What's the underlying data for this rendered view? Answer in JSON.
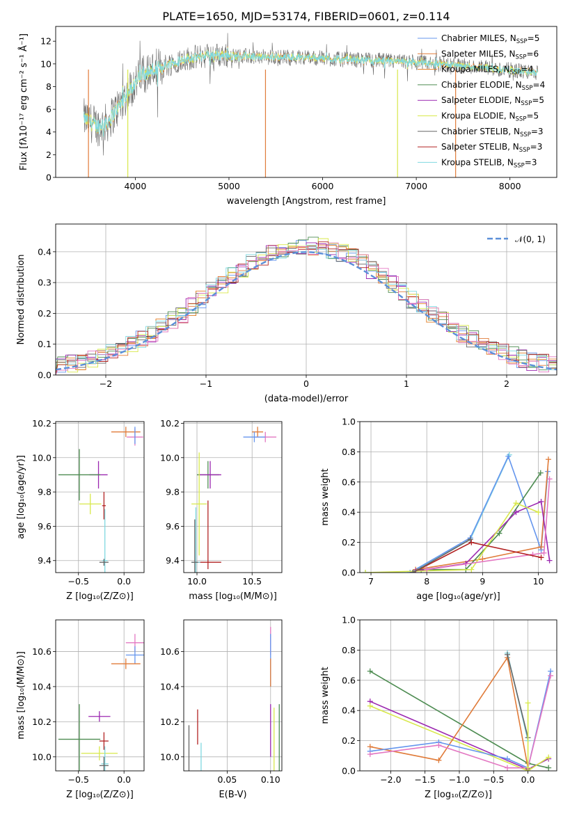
{
  "figure_title": "PLATE=1650, MJD=53174, FIBERID=0601, z=0.114",
  "colors": {
    "Chabrier MILES": "#6495ed",
    "Salpeter MILES": "#e07b39",
    "Kroupa MILES": "#e07b20",
    "Chabrier ELODIE": "#4c8b50",
    "Salpeter ELODIE": "#9b27b0",
    "Kroupa ELODIE": "#d8e84a",
    "Chabrier STELIB": "#666666",
    "Salpeter STELIB": "#b22222",
    "Kroupa STELIB": "#7fd8e0",
    "gaussian": "#5b8fd8",
    "grid": "#b0b0b0",
    "pink": "#e377c2"
  },
  "chart_data": [
    {
      "id": "spectrum",
      "type": "line",
      "title": "PLATE=1650, MJD=53174, FIBERID=0601, z=0.114",
      "xlabel": "wavelength [Angstrom, rest frame]",
      "ylabel": "Flux [fλ10⁻¹⁷ erg cm⁻² s⁻¹ Å⁻¹]",
      "xlim": [
        3150,
        8500
      ],
      "ylim": [
        0,
        13.3
      ],
      "xticks": [
        "4000",
        "5000",
        "6000",
        "7000",
        "8000"
      ],
      "yticks": [
        "0",
        "2",
        "4",
        "6",
        "8",
        "10",
        "12"
      ],
      "grid": false,
      "legend_position": "top-right",
      "legend": [
        {
          "label": "Chabrier MILES, N",
          "sub": "SSP",
          "suffix": "=5",
          "color": "#6495ed"
        },
        {
          "label": "Salpeter MILES, N",
          "sub": "SSP",
          "suffix": "=6",
          "color": "#e07b39"
        },
        {
          "label": "Kroupa MILES, N",
          "sub": "SSP",
          "suffix": "=4",
          "color": "#e07b20"
        },
        {
          "label": "Chabrier ELODIE, N",
          "sub": "SSP",
          "suffix": "=4",
          "color": "#4c8b50"
        },
        {
          "label": "Salpeter ELODIE, N",
          "sub": "SSP",
          "suffix": "=5",
          "color": "#9b27b0"
        },
        {
          "label": "Kroupa ELODIE, N",
          "sub": "SSP",
          "suffix": "=5",
          "color": "#d8e84a"
        },
        {
          "label": "Chabrier STELIB, N",
          "sub": "SSP",
          "suffix": "=3",
          "color": "#666666"
        },
        {
          "label": "Salpeter STELIB, N",
          "sub": "SSP",
          "suffix": "=3",
          "color": "#b22222"
        },
        {
          "label": "Kroupa STELIB, N",
          "sub": "SSP",
          "suffix": "=3",
          "color": "#7fd8e0"
        }
      ],
      "continuum": {
        "x": [
          3450,
          3600,
          3700,
          3800,
          3900,
          4000,
          4100,
          4300,
          4500,
          4800,
          5100,
          5400,
          5800,
          6200,
          6600,
          7000,
          7400,
          7800,
          8200,
          8300
        ],
        "y": [
          5.2,
          4.5,
          4.8,
          6.0,
          7.2,
          8.4,
          9.2,
          9.8,
          10.4,
          10.8,
          10.7,
          10.6,
          10.6,
          10.4,
          10.3,
          10.1,
          9.9,
          9.6,
          9.3,
          9.2
        ]
      },
      "dropouts": [
        {
          "x": 3500,
          "color": "#e07b39"
        },
        {
          "x": 3920,
          "color": "#d8e84a"
        },
        {
          "x": 5390,
          "color": "#e07b39"
        },
        {
          "x": 6800,
          "color": "#d8e84a"
        },
        {
          "x": 7420,
          "color": "#e07b39"
        }
      ]
    },
    {
      "id": "residuals",
      "type": "area",
      "xlabel": "(data-model)/error",
      "ylabel": "Normed distribution",
      "xlim": [
        -2.5,
        2.5
      ],
      "ylim": [
        0,
        0.49
      ],
      "xticks": [
        "−2",
        "−1",
        "0",
        "1",
        "2"
      ],
      "yticks": [
        "0.0",
        "0.1",
        "0.2",
        "0.3",
        "0.4"
      ],
      "grid": true,
      "legend_position": "top-right",
      "gaussian_label": "𝒩(0, 1)",
      "bin_width": 0.1,
      "hist_base": [
        0.025,
        0.03,
        0.04,
        0.05,
        0.06,
        0.075,
        0.09,
        0.11,
        0.13,
        0.155,
        0.18,
        0.21,
        0.24,
        0.27,
        0.3,
        0.33,
        0.355,
        0.375,
        0.39,
        0.4,
        0.405,
        0.4,
        0.39,
        0.375,
        0.355,
        0.33,
        0.3,
        0.27,
        0.24,
        0.21,
        0.18,
        0.155,
        0.13,
        0.11,
        0.09,
        0.075,
        0.06,
        0.05,
        0.04,
        0.03
      ]
    },
    {
      "id": "z-vs-age",
      "type": "scatter",
      "xlabel": "Z [log₁₀(Z/Z⊙)]",
      "ylabel": "age  [log₁₀(age/yr)]",
      "xlim": [
        -0.75,
        0.22
      ],
      "ylim": [
        9.33,
        10.21
      ],
      "xticks": [
        "−0.5",
        "0.0"
      ],
      "yticks": [
        "9.4",
        "9.6",
        "9.8",
        "10.0",
        "10.2"
      ],
      "grid": true,
      "points": [
        {
          "x": 0.12,
          "y": 10.12,
          "xe": 0.09,
          "ye": 0.05,
          "c": "#e377c2"
        },
        {
          "x": 0.02,
          "y": 10.15,
          "xe": 0.16,
          "ye": 0.03,
          "c": "#e07b39"
        },
        {
          "x": 0.12,
          "y": 10.13,
          "xe": 0.0,
          "ye": 0.05,
          "c": "#6495ed"
        },
        {
          "x": -0.28,
          "y": 9.9,
          "xe": 0.1,
          "ye": 0.08,
          "c": "#9b27b0"
        },
        {
          "x": -0.49,
          "y": 9.9,
          "xe": 0.23,
          "ye": 0.15,
          "c": "#4c8b50"
        },
        {
          "x": -0.37,
          "y": 9.73,
          "xe": 0.12,
          "ye": 0.06,
          "c": "#d8e84a"
        },
        {
          "x": -0.22,
          "y": 9.72,
          "xe": 0.02,
          "ye": 0.08,
          "c": "#b22222"
        },
        {
          "x": -0.21,
          "y": 9.4,
          "xe": 0.03,
          "ye": 0.3,
          "c": "#7fd8e0"
        },
        {
          "x": -0.22,
          "y": 9.39,
          "xe": 0.05,
          "ye": 0.02,
          "c": "#666666"
        }
      ]
    },
    {
      "id": "mass-vs-age",
      "type": "scatter",
      "xlabel": "mass [log₁₀(M/M⊙)]",
      "ylabel": "",
      "xlim": [
        9.88,
        10.77
      ],
      "ylim": [
        9.33,
        10.21
      ],
      "xticks": [
        "10.0",
        "10.5"
      ],
      "yticks": [
        "9.4",
        "9.6",
        "9.8",
        "10.0",
        "10.2"
      ],
      "grid": true,
      "points": [
        {
          "x": 10.62,
          "y": 10.12,
          "xe": 0.1,
          "ye": 0.03,
          "c": "#e377c2"
        },
        {
          "x": 10.55,
          "y": 10.15,
          "xe": 0.05,
          "ye": 0.03,
          "c": "#e07b39"
        },
        {
          "x": 10.52,
          "y": 10.12,
          "xe": 0.1,
          "ye": 0.03,
          "c": "#6495ed"
        },
        {
          "x": 10.1,
          "y": 9.9,
          "xe": 0.1,
          "ye": 0.08,
          "c": "#4c8b50"
        },
        {
          "x": 10.12,
          "y": 9.9,
          "xe": 0.1,
          "ye": 0.08,
          "c": "#9b27b0"
        },
        {
          "x": 10.02,
          "y": 9.73,
          "xe": 0.07,
          "ye": 0.3,
          "c": "#d8e84a"
        },
        {
          "x": 10.1,
          "y": 9.55,
          "xe": 0.0,
          "ye": 0.2,
          "c": "#b22222"
        },
        {
          "x": 10.09,
          "y": 9.39,
          "xe": 0.13,
          "ye": 0.0,
          "c": "#b22222"
        },
        {
          "x": 9.99,
          "y": 9.39,
          "xe": 0.04,
          "ye": 0.32,
          "c": "#7fd8e0"
        },
        {
          "x": 9.98,
          "y": 9.39,
          "xe": 0.03,
          "ye": 0.25,
          "c": "#666666"
        }
      ]
    },
    {
      "id": "age-vs-weight",
      "type": "line",
      "xlabel": "age  [log₁₀(age/yr)]",
      "ylabel": "mass weight",
      "xlim": [
        6.8,
        10.33
      ],
      "ylim": [
        0,
        1.0
      ],
      "xticks": [
        "7",
        "8",
        "9",
        "10"
      ],
      "yticks": [
        "0.0",
        "0.2",
        "0.4",
        "0.6",
        "0.8",
        "1.0"
      ],
      "grid": true,
      "series": [
        {
          "c": "#7fd8e0",
          "x": [
            6.9,
            7.7,
            8.78,
            9.48
          ],
          "y": [
            0.0,
            0.0,
            0.22,
            0.78
          ]
        },
        {
          "c": "#6495ed",
          "x": [
            7.7,
            8.78,
            9.46,
            10.05,
            10.17
          ],
          "y": [
            0.0,
            0.23,
            0.77,
            0.15,
            0.67
          ]
        },
        {
          "c": "#e07b39",
          "x": [
            7.8,
            9.0,
            10.05,
            10.18
          ],
          "y": [
            0.02,
            0.09,
            0.17,
            0.75
          ]
        },
        {
          "c": "#4c8b50",
          "x": [
            7.9,
            8.7,
            9.3,
            10.04
          ],
          "y": [
            0.02,
            0.02,
            0.26,
            0.66
          ]
        },
        {
          "c": "#9b27b0",
          "x": [
            7.8,
            8.7,
            9.6,
            10.05,
            10.2
          ],
          "y": [
            0.01,
            0.06,
            0.4,
            0.47,
            0.08
          ]
        },
        {
          "c": "#d8e84a",
          "x": [
            6.9,
            8.8,
            9.6,
            10.0
          ],
          "y": [
            0.0,
            0.02,
            0.46,
            0.4
          ]
        },
        {
          "c": "#e377c2",
          "x": [
            8.0,
            9.9,
            10.1,
            10.2
          ],
          "y": [
            0.02,
            0.12,
            0.13,
            0.62
          ]
        },
        {
          "c": "#b22222",
          "x": [
            7.75,
            8.8,
            10.05
          ],
          "y": [
            0.0,
            0.2,
            0.1
          ]
        },
        {
          "c": "#666666",
          "x": [
            7.75,
            8.78
          ],
          "y": [
            0.0,
            0.22
          ]
        }
      ]
    },
    {
      "id": "z-vs-mass",
      "type": "scatter",
      "xlabel": "Z [log₁₀(Z/Z⊙)]",
      "ylabel": "mass [log₁₀(M/M⊙)]",
      "xlim": [
        -0.75,
        0.22
      ],
      "ylim": [
        9.92,
        10.78
      ],
      "xticks": [
        "−0.5",
        "0.0"
      ],
      "yticks": [
        "10.0",
        "10.2",
        "10.4",
        "10.6"
      ],
      "grid": true,
      "points": [
        {
          "x": 0.12,
          "y": 10.65,
          "xe": 0.1,
          "ye": 0.05,
          "c": "#e377c2"
        },
        {
          "x": 0.12,
          "y": 10.58,
          "xe": 0.1,
          "ye": 0.05,
          "c": "#6495ed"
        },
        {
          "x": 0.02,
          "y": 10.53,
          "xe": 0.16,
          "ye": 0.03,
          "c": "#e07b39"
        },
        {
          "x": -0.27,
          "y": 10.23,
          "xe": 0.12,
          "ye": 0.03,
          "c": "#9b27b0"
        },
        {
          "x": -0.22,
          "y": 10.09,
          "xe": 0.05,
          "ye": 0.05,
          "c": "#b22222"
        },
        {
          "x": -0.49,
          "y": 10.1,
          "xe": 0.23,
          "ye": 0.2,
          "c": "#4c8b50"
        },
        {
          "x": -0.27,
          "y": 10.02,
          "xe": 0.2,
          "ye": 0.04,
          "c": "#d8e84a"
        },
        {
          "x": -0.21,
          "y": 9.96,
          "xe": 0.04,
          "ye": 0.1,
          "c": "#7fd8e0"
        },
        {
          "x": -0.22,
          "y": 9.95,
          "xe": 0.05,
          "ye": 0.05,
          "c": "#666666"
        }
      ]
    },
    {
      "id": "ebv-vs-mass",
      "type": "scatter",
      "xlabel": "E(B-V)",
      "ylabel": "",
      "xlim": [
        0.0,
        0.113
      ],
      "ylim": [
        9.92,
        10.78
      ],
      "xticks": [
        "0.05",
        "0.10"
      ],
      "yticks": [
        "10.0",
        "10.2",
        "10.4",
        "10.6"
      ],
      "grid": true,
      "points": [
        {
          "x": 0.1,
          "y": 10.66,
          "xe": 0.0,
          "ye": 0.08,
          "c": "#e377c2"
        },
        {
          "x": 0.1,
          "y": 10.55,
          "xe": 0.0,
          "ye": 0.15,
          "c": "#6495ed"
        },
        {
          "x": 0.1,
          "y": 10.48,
          "xe": 0.0,
          "ye": 0.08,
          "c": "#e07b39"
        },
        {
          "x": 0.1,
          "y": 10.15,
          "xe": 0.0,
          "ye": 0.15,
          "c": "#9b27b0"
        },
        {
          "x": 0.104,
          "y": 10.1,
          "xe": 0.0,
          "ye": 0.18,
          "c": "#d8e84a"
        },
        {
          "x": 0.11,
          "y": 10.1,
          "xe": 0.0,
          "ye": 0.2,
          "c": "#4c8b50"
        },
        {
          "x": 0.016,
          "y": 10.17,
          "xe": 0.0,
          "ye": 0.1,
          "c": "#b22222"
        },
        {
          "x": 0.02,
          "y": 10.0,
          "xe": 0.0,
          "ye": 0.08,
          "c": "#7fd8e0"
        },
        {
          "x": 0.006,
          "y": 10.05,
          "xe": 0.0,
          "ye": 0.13,
          "c": "#666666"
        }
      ]
    },
    {
      "id": "z-vs-weight",
      "type": "line",
      "xlabel": "Z [log₁₀(Z/Z⊙)]",
      "ylabel": "mass weight",
      "xlim": [
        -2.45,
        0.42
      ],
      "ylim": [
        0,
        1.0
      ],
      "xticks": [
        "−2.0",
        "−1.5",
        "−1.0",
        "−0.5",
        "0.0"
      ],
      "yticks": [
        "0.0",
        "0.2",
        "0.4",
        "0.6",
        "0.8",
        "1.0"
      ],
      "grid": true,
      "series": [
        {
          "c": "#4c8b50",
          "x": [
            -2.3,
            0.0,
            0.3
          ],
          "y": [
            0.66,
            0.05,
            0.02
          ]
        },
        {
          "c": "#9b27b0",
          "x": [
            -2.3,
            0.0,
            0.3
          ],
          "y": [
            0.46,
            0.01,
            0.08
          ]
        },
        {
          "c": "#d8e84a",
          "x": [
            -2.3,
            0.0,
            0.3
          ],
          "y": [
            0.43,
            0.0,
            0.09
          ]
        },
        {
          "c": "#e07b39",
          "x": [
            -2.3,
            -1.3,
            -0.3,
            0.0
          ],
          "y": [
            0.16,
            0.07,
            0.75,
            0.02
          ]
        },
        {
          "c": "#6495ed",
          "x": [
            -2.3,
            -1.3,
            -0.3,
            0.0,
            0.33
          ],
          "y": [
            0.13,
            0.19,
            0.08,
            0.02,
            0.66
          ]
        },
        {
          "c": "#e377c2",
          "x": [
            -2.3,
            -1.3,
            -0.3,
            0.0,
            0.33
          ],
          "y": [
            0.11,
            0.17,
            0.02,
            0.02,
            0.63
          ]
        },
        {
          "c": "#7fd8e0",
          "x": [
            -0.3,
            0.0
          ],
          "y": [
            0.78,
            0.2
          ]
        },
        {
          "c": "#666666",
          "x": [
            -0.3,
            0.0
          ],
          "y": [
            0.77,
            0.22
          ]
        },
        {
          "c": "#d8e84a",
          "x": [
            0.0,
            0.0
          ],
          "y": [
            0.45,
            0.02
          ]
        }
      ]
    }
  ]
}
